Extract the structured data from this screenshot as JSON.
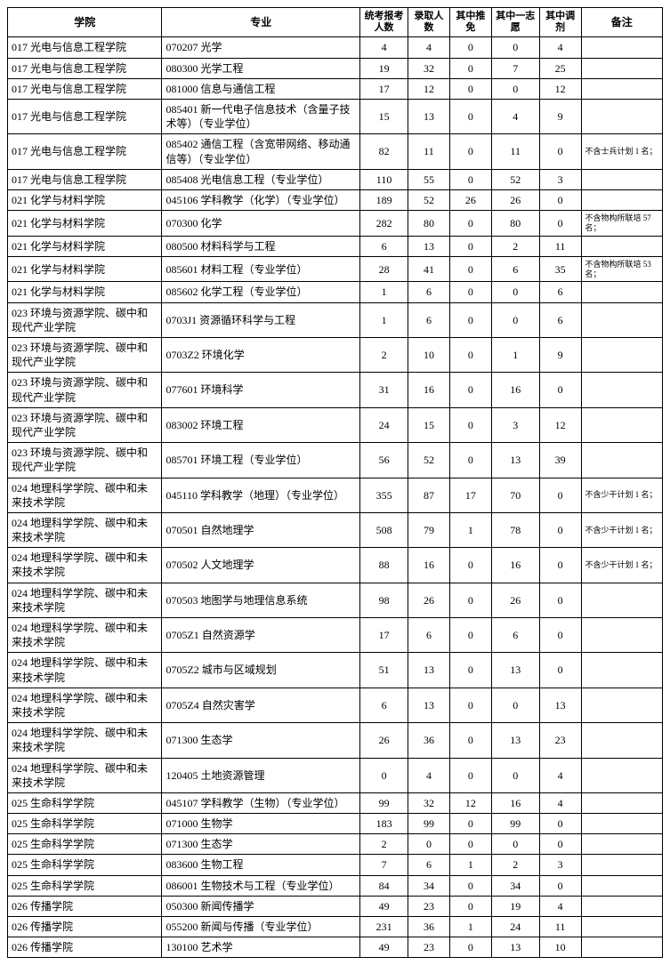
{
  "headers": {
    "college": "学院",
    "major": "专业",
    "applicants": "统考报考人数",
    "admitted": "录取人数",
    "recommended": "其中推免",
    "firstChoice": "其中一志愿",
    "adjusted": "其中调剂",
    "note": "备注"
  },
  "rows": [
    {
      "college": "017 光电与信息工程学院",
      "major": "070207 光学",
      "c1": "4",
      "c2": "4",
      "c3": "0",
      "c4": "0",
      "c5": "4",
      "note": ""
    },
    {
      "college": "017 光电与信息工程学院",
      "major": "080300 光学工程",
      "c1": "19",
      "c2": "32",
      "c3": "0",
      "c4": "7",
      "c5": "25",
      "note": ""
    },
    {
      "college": "017 光电与信息工程学院",
      "major": "081000 信息与通信工程",
      "c1": "17",
      "c2": "12",
      "c3": "0",
      "c4": "0",
      "c5": "12",
      "note": ""
    },
    {
      "college": "017 光电与信息工程学院",
      "major": "085401 新一代电子信息技术（含量子技术等）（专业学位）",
      "c1": "15",
      "c2": "13",
      "c3": "0",
      "c4": "4",
      "c5": "9",
      "note": ""
    },
    {
      "college": "017 光电与信息工程学院",
      "major": "085402 通信工程（含宽带网络、移动通信等）（专业学位）",
      "c1": "82",
      "c2": "11",
      "c3": "0",
      "c4": "11",
      "c5": "0",
      "note": "不含士兵计划 1 名；"
    },
    {
      "college": "017 光电与信息工程学院",
      "major": "085408 光电信息工程（专业学位）",
      "c1": "110",
      "c2": "55",
      "c3": "0",
      "c4": "52",
      "c5": "3",
      "note": ""
    },
    {
      "college": "021 化学与材料学院",
      "major": "045106 学科教学（化学）（专业学位）",
      "c1": "189",
      "c2": "52",
      "c3": "26",
      "c4": "26",
      "c5": "0",
      "note": ""
    },
    {
      "college": "021 化学与材料学院",
      "major": "070300 化学",
      "c1": "282",
      "c2": "80",
      "c3": "0",
      "c4": "80",
      "c5": "0",
      "note": "不含物构所联培 57 名；"
    },
    {
      "college": "021 化学与材料学院",
      "major": "080500 材料科学与工程",
      "c1": "6",
      "c2": "13",
      "c3": "0",
      "c4": "2",
      "c5": "11",
      "note": ""
    },
    {
      "college": "021 化学与材料学院",
      "major": "085601 材料工程（专业学位）",
      "c1": "28",
      "c2": "41",
      "c3": "0",
      "c4": "6",
      "c5": "35",
      "note": "不含物构所联培 53 名；"
    },
    {
      "college": "021 化学与材料学院",
      "major": "085602 化学工程（专业学位）",
      "c1": "1",
      "c2": "6",
      "c3": "0",
      "c4": "0",
      "c5": "6",
      "note": ""
    },
    {
      "college": "023 环境与资源学院、碳中和现代产业学院",
      "major": "0703J1 资源循环科学与工程",
      "c1": "1",
      "c2": "6",
      "c3": "0",
      "c4": "0",
      "c5": "6",
      "note": ""
    },
    {
      "college": "023 环境与资源学院、碳中和现代产业学院",
      "major": "0703Z2 环境化学",
      "c1": "2",
      "c2": "10",
      "c3": "0",
      "c4": "1",
      "c5": "9",
      "note": ""
    },
    {
      "college": "023 环境与资源学院、碳中和现代产业学院",
      "major": "077601 环境科学",
      "c1": "31",
      "c2": "16",
      "c3": "0",
      "c4": "16",
      "c5": "0",
      "note": ""
    },
    {
      "college": "023 环境与资源学院、碳中和现代产业学院",
      "major": "083002 环境工程",
      "c1": "24",
      "c2": "15",
      "c3": "0",
      "c4": "3",
      "c5": "12",
      "note": ""
    },
    {
      "college": "023 环境与资源学院、碳中和现代产业学院",
      "major": "085701 环境工程（专业学位）",
      "c1": "56",
      "c2": "52",
      "c3": "0",
      "c4": "13",
      "c5": "39",
      "note": ""
    },
    {
      "college": "024 地理科学学院、碳中和未来技术学院",
      "major": "045110 学科教学（地理）（专业学位）",
      "c1": "355",
      "c2": "87",
      "c3": "17",
      "c4": "70",
      "c5": "0",
      "note": "不含少干计划 1 名；"
    },
    {
      "college": "024 地理科学学院、碳中和未来技术学院",
      "major": "070501 自然地理学",
      "c1": "508",
      "c2": "79",
      "c3": "1",
      "c4": "78",
      "c5": "0",
      "note": "不含少干计划 1 名；"
    },
    {
      "college": "024 地理科学学院、碳中和未来技术学院",
      "major": "070502 人文地理学",
      "c1": "88",
      "c2": "16",
      "c3": "0",
      "c4": "16",
      "c5": "0",
      "note": "不含少干计划 1 名；"
    },
    {
      "college": "024 地理科学学院、碳中和未来技术学院",
      "major": "070503 地图学与地理信息系统",
      "c1": "98",
      "c2": "26",
      "c3": "0",
      "c4": "26",
      "c5": "0",
      "note": ""
    },
    {
      "college": "024 地理科学学院、碳中和未来技术学院",
      "major": "0705Z1 自然资源学",
      "c1": "17",
      "c2": "6",
      "c3": "0",
      "c4": "6",
      "c5": "0",
      "note": ""
    },
    {
      "college": "024 地理科学学院、碳中和未来技术学院",
      "major": "0705Z2 城市与区域规划",
      "c1": "51",
      "c2": "13",
      "c3": "0",
      "c4": "13",
      "c5": "0",
      "note": ""
    },
    {
      "college": "024 地理科学学院、碳中和未来技术学院",
      "major": "0705Z4 自然灾害学",
      "c1": "6",
      "c2": "13",
      "c3": "0",
      "c4": "0",
      "c5": "13",
      "note": ""
    },
    {
      "college": "024 地理科学学院、碳中和未来技术学院",
      "major": "071300 生态学",
      "c1": "26",
      "c2": "36",
      "c3": "0",
      "c4": "13",
      "c5": "23",
      "note": ""
    },
    {
      "college": "024 地理科学学院、碳中和未来技术学院",
      "major": "120405 土地资源管理",
      "c1": "0",
      "c2": "4",
      "c3": "0",
      "c4": "0",
      "c5": "4",
      "note": ""
    },
    {
      "college": "025 生命科学学院",
      "major": "045107 学科教学（生物）（专业学位）",
      "c1": "99",
      "c2": "32",
      "c3": "12",
      "c4": "16",
      "c5": "4",
      "note": ""
    },
    {
      "college": "025 生命科学学院",
      "major": "071000 生物学",
      "c1": "183",
      "c2": "99",
      "c3": "0",
      "c4": "99",
      "c5": "0",
      "note": ""
    },
    {
      "college": "025 生命科学学院",
      "major": "071300 生态学",
      "c1": "2",
      "c2": "0",
      "c3": "0",
      "c4": "0",
      "c5": "0",
      "note": ""
    },
    {
      "college": "025 生命科学学院",
      "major": "083600 生物工程",
      "c1": "7",
      "c2": "6",
      "c3": "1",
      "c4": "2",
      "c5": "3",
      "note": ""
    },
    {
      "college": "025 生命科学学院",
      "major": "086001 生物技术与工程（专业学位）",
      "c1": "84",
      "c2": "34",
      "c3": "0",
      "c4": "34",
      "c5": "0",
      "note": ""
    },
    {
      "college": "026 传播学院",
      "major": "050300 新闻传播学",
      "c1": "49",
      "c2": "23",
      "c3": "0",
      "c4": "19",
      "c5": "4",
      "note": ""
    },
    {
      "college": "026 传播学院",
      "major": "055200 新闻与传播（专业学位）",
      "c1": "231",
      "c2": "36",
      "c3": "1",
      "c4": "24",
      "c5": "11",
      "note": ""
    },
    {
      "college": "026 传播学院",
      "major": "130100 艺术学",
      "c1": "49",
      "c2": "23",
      "c3": "0",
      "c4": "13",
      "c5": "10",
      "note": ""
    }
  ]
}
